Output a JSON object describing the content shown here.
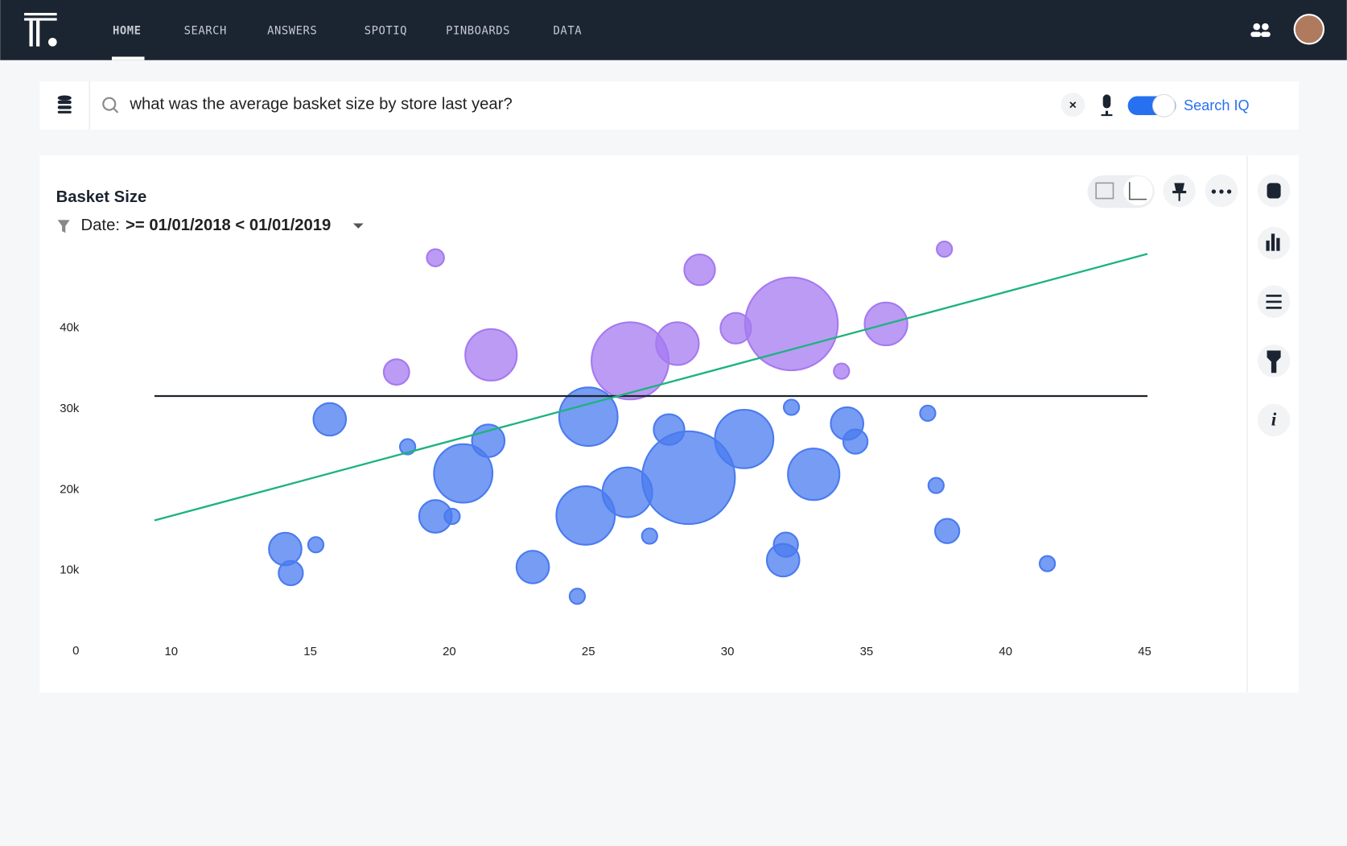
{
  "nav": {
    "items": [
      "HOME",
      "SEARCH",
      "ANSWERS",
      "SPOTIQ",
      "PINBOARDS",
      "DATA"
    ]
  },
  "search": {
    "query": "what was the average basket size by store last year?",
    "toggle_label": "Search IQ"
  },
  "filter": {
    "label": "Date:",
    "value": ">= 01/01/2018 < 01/01/2019"
  },
  "chart_data": {
    "type": "bubble",
    "title": "Basket Size",
    "xlim": [
      7,
      46
    ],
    "ylim": [
      0,
      50000
    ],
    "xticks": [
      10,
      15,
      20,
      25,
      30,
      35,
      40,
      45
    ],
    "yticks": [
      0,
      {
        "value": 10000,
        "label": "10k"
      },
      {
        "value": 20000,
        "label": "20k"
      },
      {
        "value": 30000,
        "label": "30k"
      },
      {
        "value": 40000,
        "label": "40k"
      }
    ],
    "series": [
      {
        "color": "#a57af0",
        "x": [
          19.5,
          29.0,
          37.8,
          18.1,
          21.5,
          26.5,
          28.2,
          30.3,
          32.3,
          35.7,
          34.1
        ],
        "values": [
          48720,
          47230,
          49790,
          34570,
          36700,
          35960,
          38090,
          40000,
          40530,
          40530,
          34680
        ],
        "size": [
          10,
          32,
          8,
          22,
          90,
          202,
          62,
          32,
          292,
          62,
          8
        ]
      },
      {
        "color": "#4a7bef",
        "x": [
          15.7,
          18.5,
          21.4,
          20.5,
          25.0,
          27.9,
          30.6,
          28.6,
          26.4,
          32.3,
          34.3,
          34.6,
          33.1,
          37.2,
          37.5,
          37.9,
          19.5,
          20.1,
          24.9,
          27.2,
          14.1,
          15.2,
          14.3,
          23.0,
          24.6,
          32.1,
          32.0,
          41.5
        ],
        "values": [
          28720,
          25320,
          26060,
          22020,
          29040,
          27450,
          26280,
          21490,
          19680,
          30210,
          28190,
          25960,
          21910,
          29470,
          20530,
          14890,
          16700,
          16700,
          16810,
          14260,
          12660,
          13190,
          9680,
          10430,
          6810,
          13190,
          11280,
          10850
        ],
        "size": [
          36,
          8,
          36,
          116,
          116,
          32,
          116,
          292,
          84,
          8,
          36,
          20,
          90,
          8,
          8,
          20,
          36,
          8,
          116,
          8,
          36,
          8,
          20,
          36,
          8,
          20,
          36,
          8
        ]
      }
    ],
    "lines": [
      {
        "color": "#1f2329",
        "x": [
          9.4,
          45.1
        ],
        "y": [
          31600,
          31600
        ]
      },
      {
        "color": "#1db37f",
        "x": [
          9.4,
          45.1
        ],
        "y": [
          16200,
          49200
        ]
      }
    ]
  }
}
